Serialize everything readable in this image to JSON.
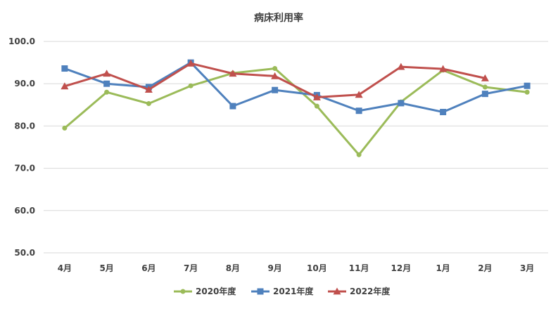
{
  "chart_data": {
    "type": "line",
    "title": "病床利用率",
    "xlabel": "",
    "ylabel": "",
    "categories": [
      "4月",
      "5月",
      "6月",
      "7月",
      "8月",
      "9月",
      "10月",
      "11月",
      "12月",
      "1月",
      "2月",
      "3月"
    ],
    "ylim": [
      50,
      100
    ],
    "yticks": [
      "50.0",
      "60.0",
      "70.0",
      "80.0",
      "90.0",
      "100.0"
    ],
    "grid": true,
    "legend_position": "bottom",
    "series": [
      {
        "name": "2020年度",
        "color": "#9bbb59",
        "marker": "circle",
        "values": [
          79.5,
          88.0,
          85.3,
          89.5,
          92.5,
          93.6,
          84.7,
          73.2,
          85.7,
          93.2,
          89.2,
          88.0
        ]
      },
      {
        "name": "2021年度",
        "color": "#4f81bd",
        "marker": "square",
        "values": [
          93.6,
          90.0,
          89.2,
          95.0,
          84.7,
          88.5,
          87.3,
          83.6,
          85.4,
          83.3,
          87.6,
          89.5
        ]
      },
      {
        "name": "2022年度",
        "color": "#c0504d",
        "marker": "triangle",
        "values": [
          89.4,
          92.4,
          88.6,
          94.8,
          92.4,
          91.8,
          86.8,
          87.4,
          94.0,
          93.5,
          91.3,
          null
        ]
      }
    ]
  }
}
